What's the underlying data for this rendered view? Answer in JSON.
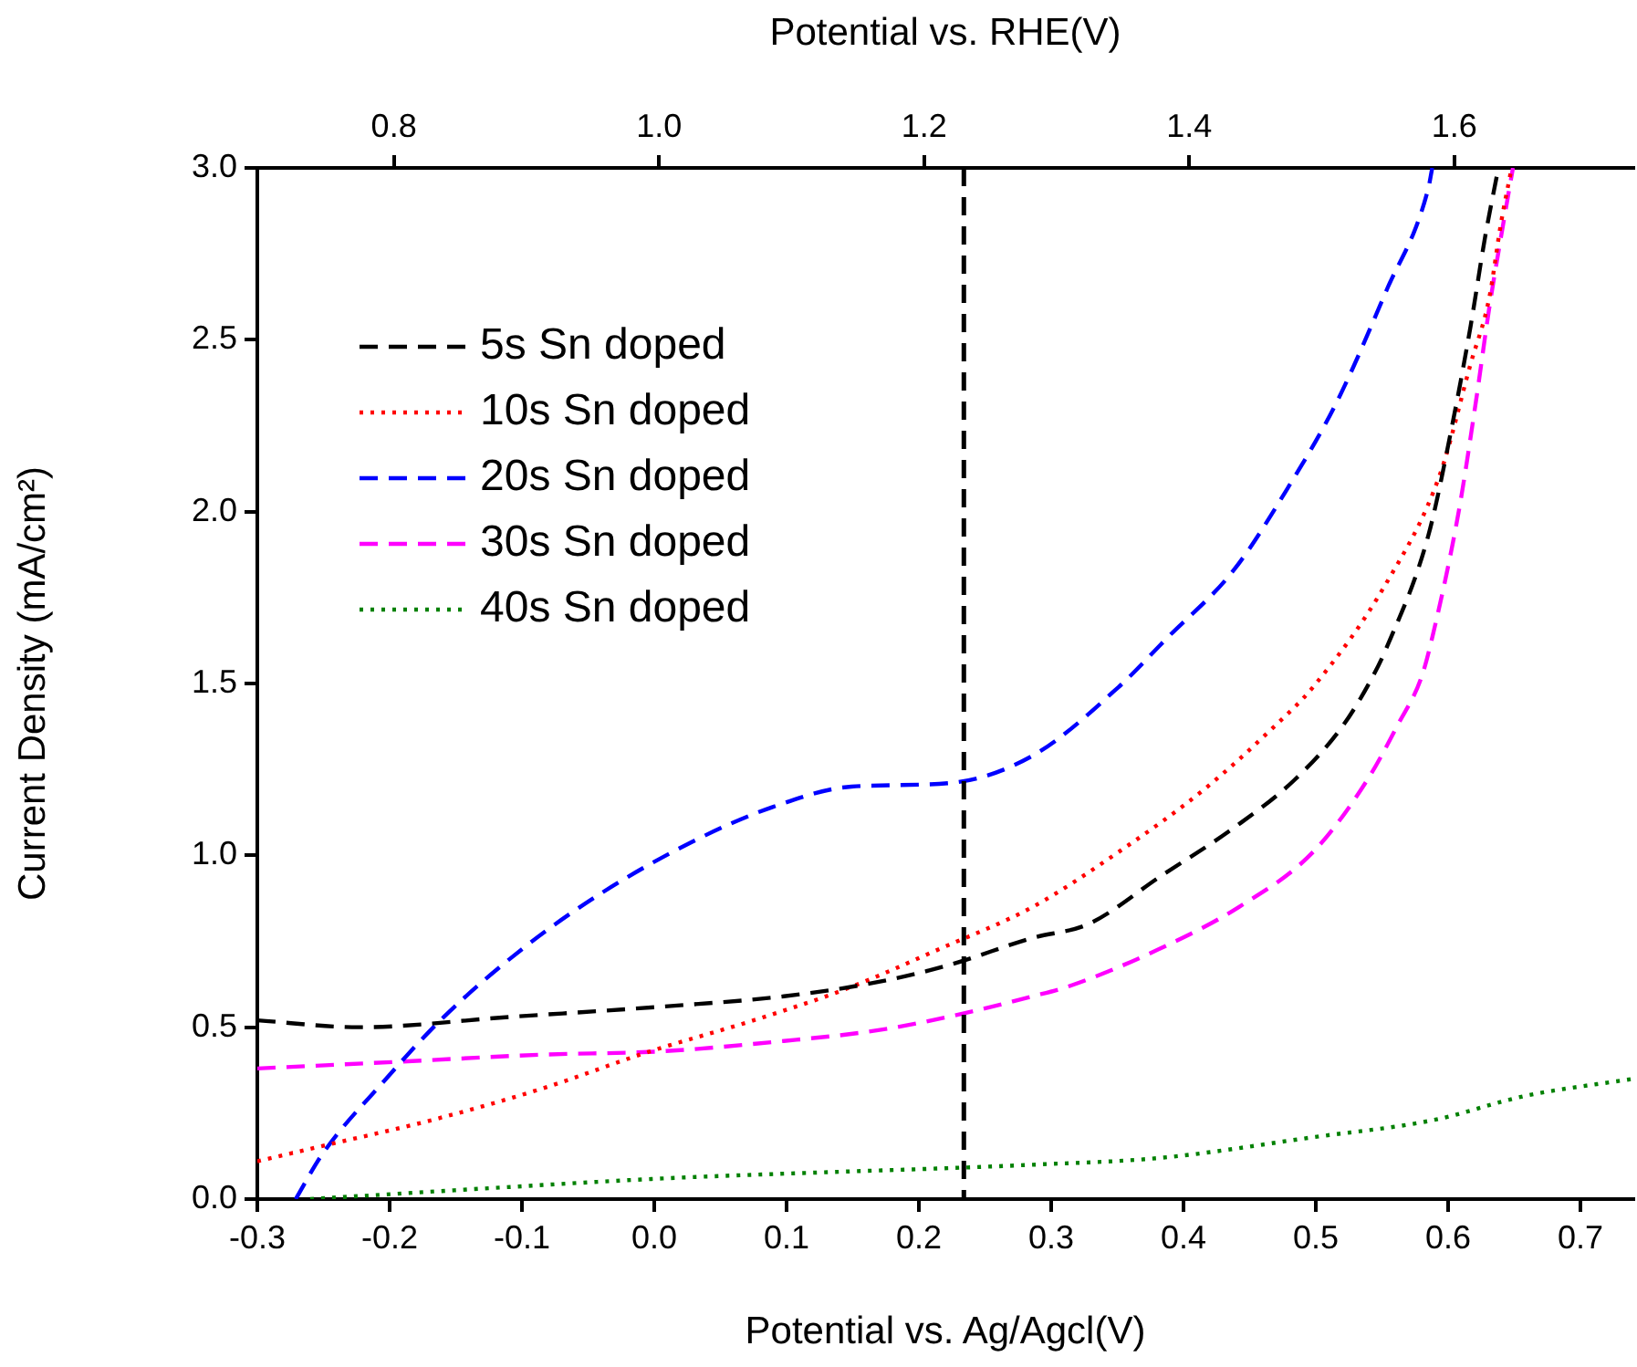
{
  "chart_data": {
    "type": "line",
    "xlabel": "Potential vs. Ag/Agcl(V)",
    "ylabel": "Current Density (mA/cm²)",
    "x2label": "Potential vs. RHE(V)",
    "xlim": [
      -0.3,
      0.74
    ],
    "xticks": [
      -0.3,
      -0.2,
      -0.1,
      {
        "value": 0,
        "label": "0.0"
      },
      0.1,
      0.2,
      0.3,
      0.4,
      0.5,
      0.6,
      0.7
    ],
    "x2lim": [
      0.697,
      1.735
    ],
    "x2ticks": [
      0.8,
      {
        "value": 1,
        "label": "1.0"
      },
      1.2,
      1.4,
      1.6
    ],
    "ylim": [
      0,
      3
    ],
    "yticks": [
      {
        "value": 0,
        "label": "0.0"
      },
      0.5,
      {
        "value": 1,
        "label": "1.0"
      },
      1.5,
      {
        "value": 2,
        "label": "2.0"
      },
      2.5,
      {
        "value": 3,
        "label": "3.0"
      }
    ],
    "legend": "top left",
    "marker": "none",
    "ref_lines": [
      {
        "axis": "x",
        "value": 0.234,
        "label": null,
        "color": "#000000",
        "line_style": "dashed"
      }
    ],
    "series": [
      {
        "name": "5s Sn doped",
        "color": "#000000",
        "line_style": "dashed",
        "x": [
          -0.3,
          -0.223,
          -0.109,
          0.006,
          0.098,
          0.167,
          0.222,
          0.286,
          0.328,
          0.383,
          0.438,
          0.484,
          0.521,
          0.543,
          0.553,
          0.585,
          0.603,
          0.617,
          0.628,
          0.638
        ],
        "values": [
          0.52,
          0.5,
          0.53,
          0.56,
          0.59,
          0.63,
          0.68,
          0.76,
          0.8,
          0.94,
          1.08,
          1.22,
          1.38,
          1.52,
          1.6,
          1.93,
          2.25,
          2.54,
          2.8,
          3.0
        ]
      },
      {
        "name": "10s Sn doped",
        "color": "#ff0000",
        "line_style": "dotted",
        "x": [
          -0.3,
          -0.256,
          -0.168,
          -0.086,
          -0.003,
          0.075,
          0.144,
          0.217,
          0.286,
          0.351,
          0.415,
          0.47,
          0.498,
          0.553,
          0.594,
          0.617,
          0.631,
          0.64,
          0.648
        ],
        "values": [
          0.11,
          0.15,
          0.23,
          0.32,
          0.43,
          0.52,
          0.61,
          0.73,
          0.85,
          1.01,
          1.19,
          1.38,
          1.49,
          1.79,
          2.11,
          2.43,
          2.62,
          2.84,
          3.0
        ]
      },
      {
        "name": "20s Sn doped",
        "color": "#0000ff",
        "line_style": "dashed",
        "x": [
          -0.271,
          -0.251,
          -0.205,
          -0.159,
          -0.099,
          -0.04,
          0.029,
          0.089,
          0.149,
          0.222,
          0.286,
          0.351,
          0.387,
          0.438,
          0.479,
          0.516,
          0.553,
          0.585,
          0.588
        ],
        "values": [
          0,
          0.13,
          0.34,
          0.53,
          0.73,
          0.89,
          1.04,
          1.14,
          1.2,
          1.21,
          1.29,
          1.49,
          1.63,
          1.83,
          2.07,
          2.32,
          2.64,
          2.94,
          3.0
        ]
      },
      {
        "name": "30s Sn doped",
        "color": "#ff00ff",
        "line_style": "dashed",
        "x": [
          -0.3,
          -0.191,
          -0.086,
          0.006,
          0.098,
          0.167,
          0.222,
          0.286,
          0.314,
          0.383,
          0.442,
          0.498,
          0.539,
          0.562,
          0.58,
          0.589,
          0.608,
          0.621,
          0.631,
          0.64,
          0.649
        ],
        "values": [
          0.38,
          0.4,
          0.42,
          0.43,
          0.46,
          0.49,
          0.53,
          0.59,
          0.62,
          0.73,
          0.85,
          1.01,
          1.22,
          1.38,
          1.52,
          1.65,
          2.0,
          2.32,
          2.59,
          2.8,
          3.0
        ]
      },
      {
        "name": "40s Sn doped",
        "color": "#008000",
        "line_style": "dotted",
        "x": [
          -0.26,
          -0.132,
          0.006,
          0.144,
          0.222,
          0.286,
          0.383,
          0.498,
          0.589,
          0.658,
          0.74
        ],
        "values": [
          0,
          0.03,
          0.06,
          0.08,
          0.09,
          0.1,
          0.12,
          0.18,
          0.23,
          0.3,
          0.35
        ]
      }
    ]
  }
}
